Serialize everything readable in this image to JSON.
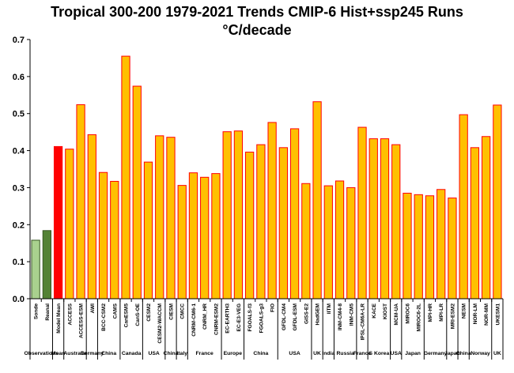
{
  "chart_data": {
    "type": "bar",
    "title": "Tropical 300-200 1979-2021 Trends CMIP-6 Hist+ssp245 Runs",
    "subtitle": "°C/decade",
    "ylim": [
      0,
      0.7
    ],
    "yticks": [
      "0.0",
      "0.1",
      "0.2",
      "0.3",
      "0.4",
      "0.5",
      "0.6",
      "0.7"
    ],
    "grid": "none",
    "colors": {
      "sonde": "#a9d18e",
      "reanal": "#548235",
      "model_mean": "#ff0000",
      "model": "#ffc000",
      "model_edge": "#ff0000",
      "obs_edge": "#385723"
    },
    "categories": [
      "Sonde",
      "Reanal",
      "Model Mean",
      "ACCESS",
      "ACCESS-ESM",
      "AWI",
      "BCC-CSM2",
      "CAMS",
      "CanESM5",
      "CanS-OE",
      "CESM2",
      "CESM2-WACCM",
      "CIESM",
      "CMCC",
      "CNRM-CM6-1",
      "CNRM_HR",
      "CNRM-ESM2",
      "EC-EARTH3",
      "EC-E3-VEG",
      "FGOALS-f3",
      "FGOALS-g3",
      "FIO",
      "GFDL-CM4",
      "GFDL-ESM",
      "GISS-E2",
      "HadGEM",
      "IITM",
      "INM-CM4-8",
      "INM-CM5",
      "IPSL-CM6A-LR",
      "KACE",
      "KIOST",
      "MCM-UA",
      "MIROC6",
      "MIROC6-2L",
      "MPI-HR",
      "MPI-LR",
      "MRI-ESM2",
      "NESM",
      "NOR-LM",
      "NOR-MM",
      "UKESM1"
    ],
    "values": [
      0.158,
      0.184,
      0.411,
      0.404,
      0.524,
      0.443,
      0.341,
      0.317,
      0.655,
      0.574,
      0.369,
      0.44,
      0.436,
      0.306,
      0.34,
      0.328,
      0.338,
      0.451,
      0.453,
      0.396,
      0.416,
      0.476,
      0.408,
      0.459,
      0.311,
      0.532,
      0.305,
      0.318,
      0.3,
      0.463,
      0.432,
      0.432,
      0.416,
      0.285,
      0.281,
      0.278,
      0.295,
      0.272,
      0.497,
      0.408,
      0.438,
      0.523
    ],
    "groups": [
      {
        "label": "Observations",
        "start": 0,
        "end": 1
      },
      {
        "label": "Mean",
        "start": 2,
        "end": 2
      },
      {
        "label": "Australia",
        "start": 3,
        "end": 4
      },
      {
        "label": "Germany",
        "start": 5,
        "end": 5
      },
      {
        "label": "China",
        "start": 6,
        "end": 7
      },
      {
        "label": "Canada",
        "start": 8,
        "end": 9
      },
      {
        "label": "USA",
        "start": 10,
        "end": 11
      },
      {
        "label": "China",
        "start": 12,
        "end": 12
      },
      {
        "label": "Italy",
        "start": 13,
        "end": 13
      },
      {
        "label": "France",
        "start": 14,
        "end": 16
      },
      {
        "label": "Europe",
        "start": 17,
        "end": 18
      },
      {
        "label": "China",
        "start": 19,
        "end": 21
      },
      {
        "label": "USA",
        "start": 22,
        "end": 24
      },
      {
        "label": "UK",
        "start": 25,
        "end": 25
      },
      {
        "label": "India",
        "start": 26,
        "end": 26
      },
      {
        "label": "Russia",
        "start": 27,
        "end": 28
      },
      {
        "label": "France",
        "start": 29,
        "end": 29
      },
      {
        "label": "S Korea",
        "start": 30,
        "end": 31
      },
      {
        "label": "USA",
        "start": 32,
        "end": 32
      },
      {
        "label": "Japan",
        "start": 33,
        "end": 34
      },
      {
        "label": "Germany",
        "start": 35,
        "end": 36
      },
      {
        "label": "Japan",
        "start": 37,
        "end": 37
      },
      {
        "label": "China",
        "start": 38,
        "end": 38
      },
      {
        "label": "Norway",
        "start": 39,
        "end": 40
      },
      {
        "label": "UK",
        "start": 41,
        "end": 41
      }
    ]
  }
}
